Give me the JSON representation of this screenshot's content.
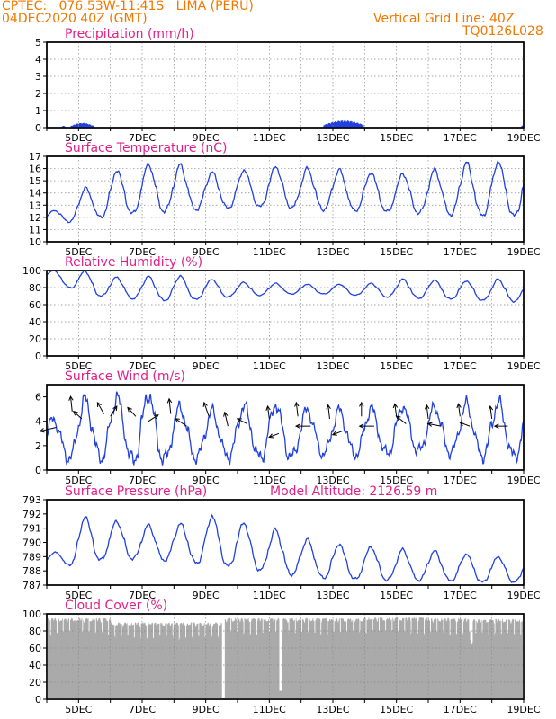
{
  "header": {
    "line1": "CPTEC:   076:53W-11:41S   LIMA (PERU)",
    "line2": "04DEC2020 40Z (GMT)",
    "grid_note": "Vertical Grid Line: 40Z",
    "code": "TQ0126L028"
  },
  "colors": {
    "header": "#f07800",
    "title": "#e0208a",
    "series": "#2040e0",
    "cloud": "#aaaaaa"
  },
  "chart_data": [
    {
      "type": "bar",
      "title": "Precipitation (mm/h)",
      "x_ticks": [
        "5DEC",
        "7DEC",
        "9DEC",
        "11DEC",
        "13DEC",
        "15DEC",
        "17DEC",
        "19DEC"
      ],
      "ylim": [
        0,
        5
      ],
      "yticks": [
        0,
        1,
        2,
        3,
        4,
        5
      ],
      "grid": true,
      "bursts": [
        {
          "start": 4.45,
          "end": 4.55,
          "peak": 0.12
        },
        {
          "start": 4.75,
          "end": 5.45,
          "peak": 0.28
        },
        {
          "start": 12.7,
          "end": 13.95,
          "peak": 0.42
        },
        {
          "start": 18.9,
          "end": 18.98,
          "peak": 0.15
        }
      ]
    },
    {
      "type": "line",
      "title": "Surface Temperature (nC)",
      "x_ticks": [
        "5DEC",
        "7DEC",
        "9DEC",
        "11DEC",
        "13DEC",
        "15DEC",
        "17DEC",
        "19DEC"
      ],
      "ylim": [
        10,
        17
      ],
      "yticks": [
        10,
        11,
        12,
        13,
        14,
        15,
        16,
        17
      ],
      "grid": true,
      "days": [
        4.2,
        5.2,
        6.2,
        7.2,
        8.2,
        9.2,
        10.2,
        11.2,
        12.2,
        13.2,
        14.2,
        15.2,
        16.2,
        17.2,
        18.2
      ],
      "max": [
        12.5,
        14.4,
        15.9,
        16.4,
        16.3,
        15.7,
        15.9,
        16.2,
        16.0,
        15.9,
        15.7,
        15.6,
        15.9,
        16.5,
        16.6
      ],
      "min": [
        11.5,
        11.8,
        12.2,
        12.4,
        12.6,
        12.7,
        12.8,
        12.9,
        12.7,
        12.6,
        12.5,
        12.4,
        12.3,
        12.2,
        12.1
      ]
    },
    {
      "type": "line",
      "title": "Relative Humidity (%)",
      "x_ticks": [
        "5DEC",
        "7DEC",
        "9DEC",
        "11DEC",
        "13DEC",
        "15DEC",
        "17DEC",
        "19DEC"
      ],
      "ylim": [
        0,
        100
      ],
      "yticks": [
        0,
        20,
        40,
        60,
        80,
        100
      ],
      "grid": true,
      "days": [
        4.2,
        5.2,
        6.2,
        7.2,
        8.2,
        9.2,
        10.2,
        11.2,
        12.2,
        13.2,
        14.2,
        15.2,
        16.2,
        17.2,
        18.2
      ],
      "max": [
        100,
        100,
        92,
        93,
        94,
        90,
        86,
        85,
        84,
        84,
        85,
        90,
        89,
        88,
        90
      ],
      "min": [
        88,
        72,
        68,
        66,
        64,
        68,
        70,
        72,
        73,
        72,
        70,
        68,
        67,
        66,
        64
      ]
    },
    {
      "type": "line",
      "title": "Surface Wind (m/s)",
      "x_ticks": [
        "5DEC",
        "7DEC",
        "9DEC",
        "11DEC",
        "13DEC",
        "15DEC",
        "17DEC",
        "19DEC"
      ],
      "ylim": [
        0,
        7
      ],
      "yticks": [
        0,
        2,
        4,
        6
      ],
      "grid": false,
      "days": [
        4.2,
        5.2,
        6.2,
        7.2,
        8.2,
        9.2,
        10.2,
        11.2,
        12.2,
        13.2,
        14.2,
        15.2,
        16.2,
        17.2,
        18.2
      ],
      "max": [
        4.2,
        5.8,
        6.0,
        6.4,
        5.2,
        4.8,
        5.3,
        5.5,
        5.0,
        4.9,
        5.1,
        5.3,
        5.2,
        5.4,
        5.6
      ],
      "min": [
        0.8,
        1.2,
        0.9,
        0.6,
        1.1,
        1.0,
        1.2,
        0.8,
        1.3,
        1.4,
        1.2,
        1.5,
        1.6,
        1.3,
        1.1
      ],
      "wind_barbs": [
        {
          "x": 4.3,
          "y": 3.5,
          "dx": -1,
          "dy": -0.3
        },
        {
          "x": 4.8,
          "y": 4.8,
          "dx": -0.1,
          "dy": 1.2
        },
        {
          "x": 5.1,
          "y": 4.2,
          "dx": -0.5,
          "dy": 0.6
        },
        {
          "x": 5.8,
          "y": 4.6,
          "dx": -0.4,
          "dy": 0.9
        },
        {
          "x": 6.0,
          "y": 4.4,
          "dx": 0.4,
          "dy": 0.8
        },
        {
          "x": 6.8,
          "y": 4.4,
          "dx": -0.5,
          "dy": 0.7
        },
        {
          "x": 7.2,
          "y": 4.0,
          "dx": 0.6,
          "dy": 0.5
        },
        {
          "x": 7.9,
          "y": 4.6,
          "dx": -0.1,
          "dy": 1.2
        },
        {
          "x": 8.4,
          "y": 3.6,
          "dx": -0.7,
          "dy": 0.6
        },
        {
          "x": 9.1,
          "y": 4.4,
          "dx": -0.3,
          "dy": 1.1
        },
        {
          "x": 9.7,
          "y": 3.6,
          "dx": -0.2,
          "dy": 1.1
        },
        {
          "x": 10.3,
          "y": 3.8,
          "dx": -0.6,
          "dy": 0.4
        },
        {
          "x": 11.0,
          "y": 4.2,
          "dx": -0.1,
          "dy": 1.0
        },
        {
          "x": 11.3,
          "y": 3.0,
          "dx": -0.6,
          "dy": -0.3
        },
        {
          "x": 11.9,
          "y": 4.4,
          "dx": -0.1,
          "dy": 1.1
        },
        {
          "x": 12.3,
          "y": 3.6,
          "dx": -0.9,
          "dy": 0
        },
        {
          "x": 12.9,
          "y": 4.2,
          "dx": -0.1,
          "dy": 1.1
        },
        {
          "x": 13.3,
          "y": 3.2,
          "dx": -0.6,
          "dy": -0.3
        },
        {
          "x": 13.9,
          "y": 4.4,
          "dx": 0,
          "dy": 1.1
        },
        {
          "x": 14.3,
          "y": 3.6,
          "dx": -0.9,
          "dy": 0
        },
        {
          "x": 15.0,
          "y": 4.4,
          "dx": -0.1,
          "dy": 1.0
        },
        {
          "x": 15.3,
          "y": 3.8,
          "dx": -0.6,
          "dy": 0.6
        },
        {
          "x": 16.0,
          "y": 4.2,
          "dx": -0.1,
          "dy": 1.1
        },
        {
          "x": 16.4,
          "y": 3.6,
          "dx": -0.8,
          "dy": 0.2
        },
        {
          "x": 17.0,
          "y": 4.4,
          "dx": -0.1,
          "dy": 1.0
        },
        {
          "x": 17.3,
          "y": 3.6,
          "dx": -0.6,
          "dy": 0.3
        },
        {
          "x": 18.0,
          "y": 4.2,
          "dx": -0.1,
          "dy": 1.0
        },
        {
          "x": 18.5,
          "y": 3.6,
          "dx": -0.8,
          "dy": 0
        }
      ]
    },
    {
      "type": "line",
      "title": "Surface Pressure (hPa)",
      "annotation": "Model Altitude: 2126.59  m",
      "x_ticks": [
        "5DEC",
        "7DEC",
        "9DEC",
        "11DEC",
        "13DEC",
        "15DEC",
        "17DEC",
        "19DEC"
      ],
      "ylim": [
        787,
        793
      ],
      "yticks": [
        787,
        788,
        789,
        790,
        791,
        792,
        793
      ],
      "grid": false,
      "days": [
        4.2,
        5.2,
        6.2,
        7.2,
        8.2,
        9.2,
        10.2,
        11.2,
        12.2,
        13.2,
        14.2,
        15.2,
        16.2,
        17.2,
        18.2
      ],
      "max": [
        789.2,
        791.9,
        791.5,
        791.2,
        791.3,
        791.9,
        791.4,
        790.9,
        790.2,
        789.9,
        789.7,
        789.5,
        789.4,
        789.2,
        789.0
      ],
      "min": [
        788.2,
        788.6,
        788.9,
        788.8,
        788.7,
        788.4,
        788.2,
        787.9,
        787.6,
        787.4,
        787.4,
        787.3,
        787.4,
        787.2,
        787.2
      ]
    },
    {
      "type": "bar",
      "title": "Cloud Cover (%)",
      "x_ticks": [
        "5DEC",
        "7DEC",
        "9DEC",
        "11DEC",
        "13DEC",
        "15DEC",
        "17DEC",
        "19DEC"
      ],
      "ylim": [
        0,
        100
      ],
      "yticks": [
        0,
        20,
        40,
        60,
        80,
        100
      ],
      "grid": true,
      "segments": [
        {
          "start": 4.0,
          "end": 6.0,
          "value": 95
        },
        {
          "start": 6.0,
          "end": 8.0,
          "value": 90
        },
        {
          "start": 8.0,
          "end": 9.5,
          "value": 90
        },
        {
          "start": 9.5,
          "end": 9.6,
          "value": 0
        },
        {
          "start": 9.6,
          "end": 11.3,
          "value": 95
        },
        {
          "start": 11.3,
          "end": 11.4,
          "value": 10
        },
        {
          "start": 11.4,
          "end": 14.0,
          "value": 95
        },
        {
          "start": 14.0,
          "end": 16.0,
          "value": 96
        },
        {
          "start": 16.0,
          "end": 17.3,
          "value": 95
        },
        {
          "start": 17.3,
          "end": 17.4,
          "value": 70
        },
        {
          "start": 17.4,
          "end": 19.0,
          "value": 94
        }
      ]
    }
  ]
}
